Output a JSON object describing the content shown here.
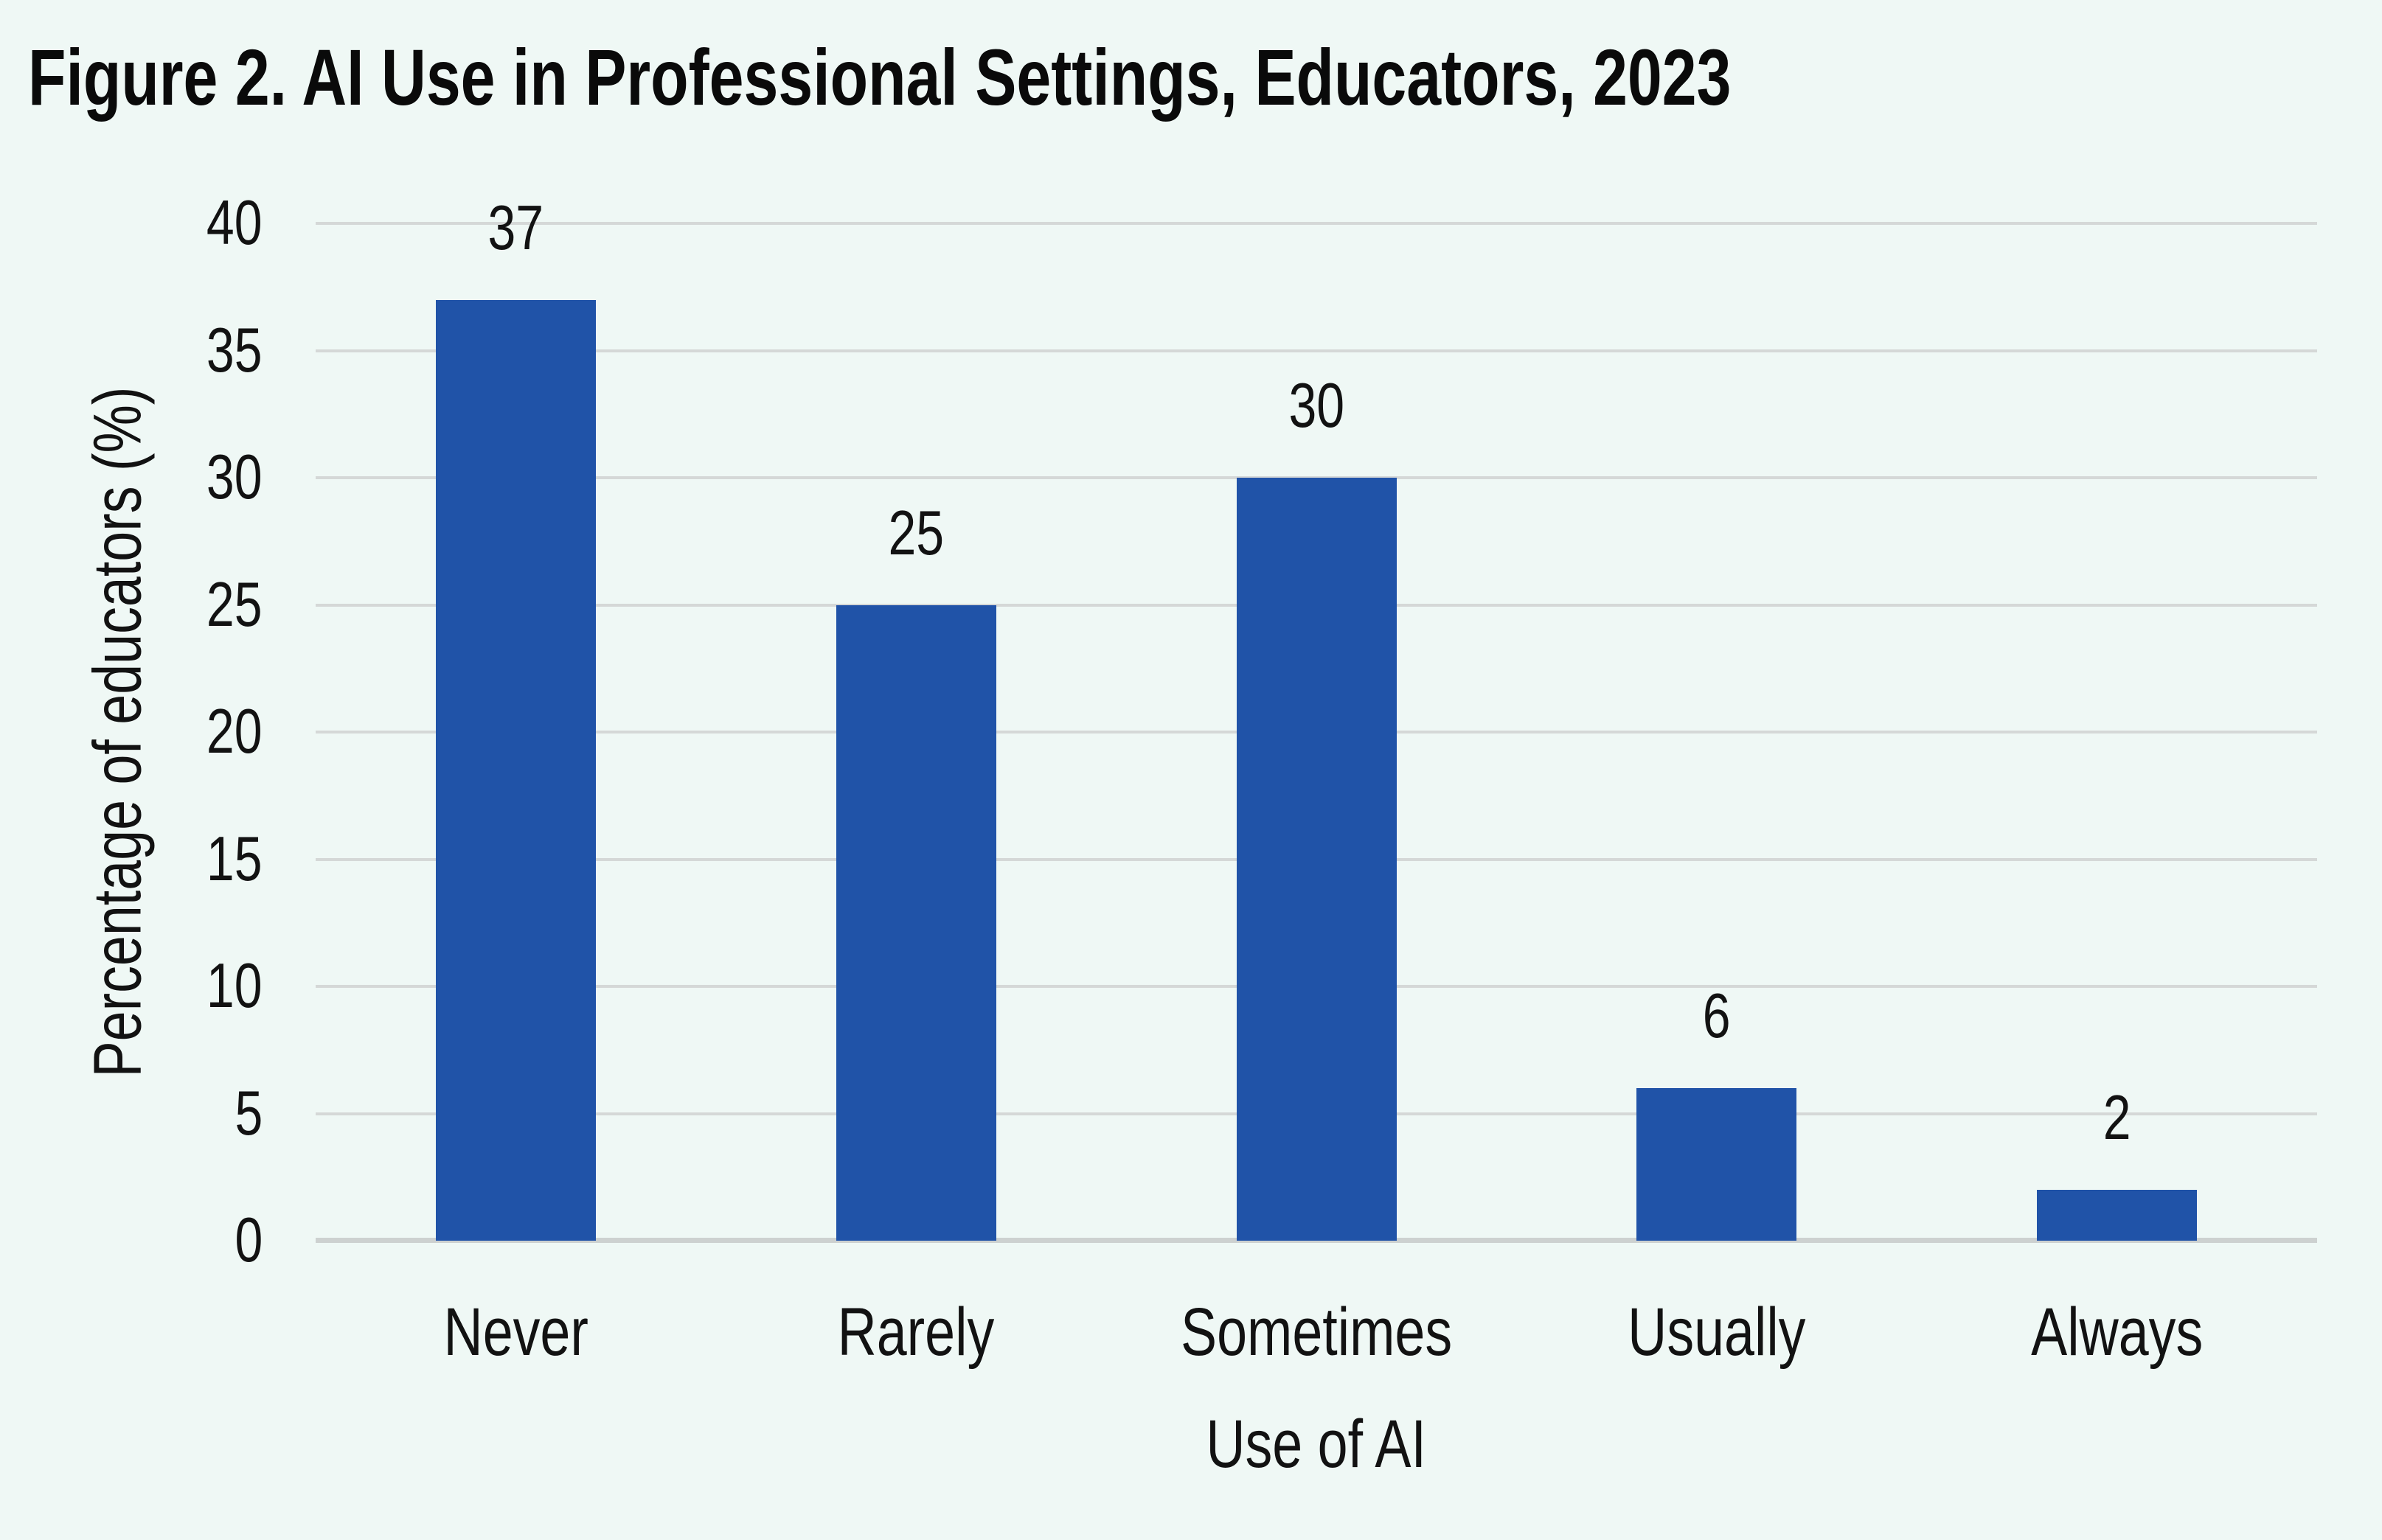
{
  "page": {
    "background_color": "#EFF8F5"
  },
  "chart_data": {
    "type": "bar",
    "title": "Figure 2. AI Use in Professional Settings, Educators, 2023",
    "xlabel": "Use of AI",
    "ylabel": "Percentage of educators (%)",
    "categories": [
      "Never",
      "Rarely",
      "Sometimes",
      "Usually",
      "Always"
    ],
    "values": [
      37,
      25,
      30,
      6,
      2
    ],
    "data_labels": [
      "37",
      "25",
      "30",
      "6",
      "2"
    ],
    "ylim": [
      0,
      40
    ],
    "yticks": [
      0,
      5,
      10,
      15,
      20,
      25,
      30,
      35,
      40
    ],
    "grid": "horizontal",
    "legend": "none",
    "bar_color": "#2053A8",
    "gridline_color": "#D5D8D7",
    "axis_line_color": "#CDD1D0",
    "text_color": "#121212",
    "background_color": "#EFF8F5"
  }
}
